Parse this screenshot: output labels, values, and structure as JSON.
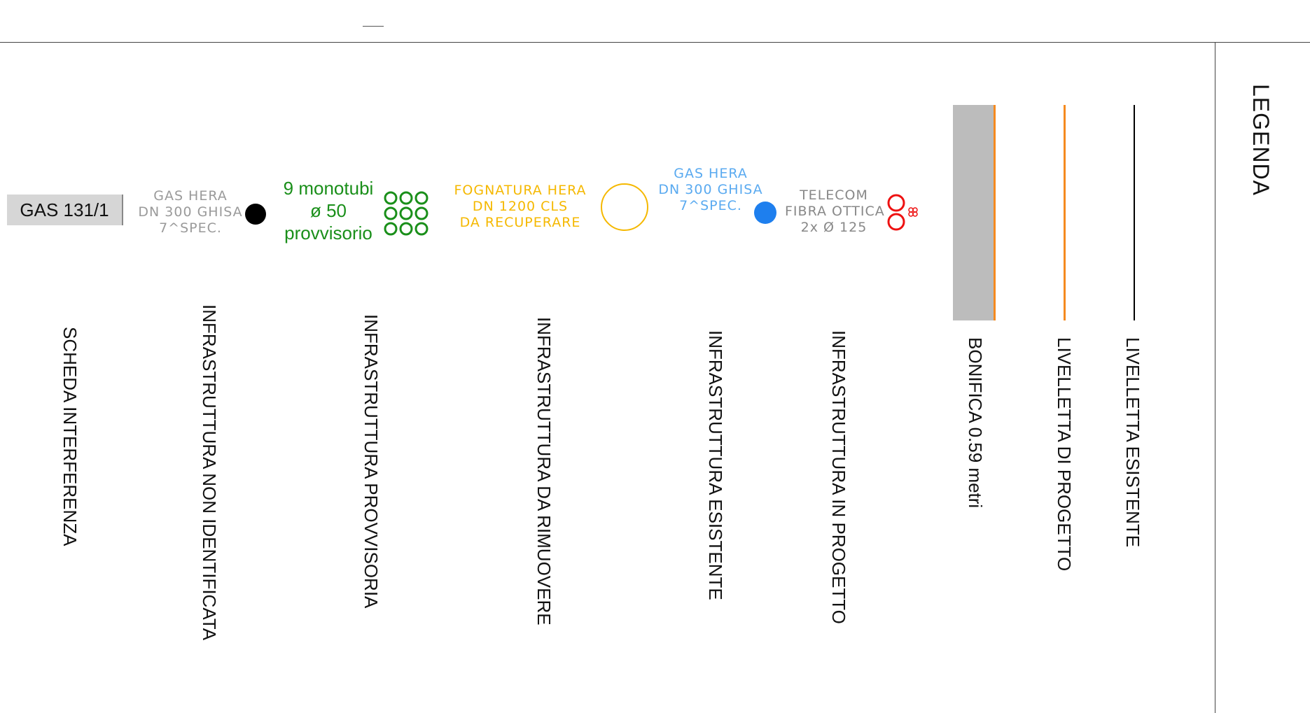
{
  "legend": {
    "title": "LEGENDA",
    "items": [
      {
        "label": "LIVELLETTA  ESISTENTE"
      },
      {
        "label": "LIVELLETTA  DI PROGETTO"
      },
      {
        "label": "BONIFICA 0.59 metri"
      },
      {
        "label": "INFRASTRUTTURA IN PROGETTO"
      },
      {
        "label": "INFRASTRUTTURA ESISTENTE"
      },
      {
        "label": "INFRASTRUTTURA DA RIMUOVERE"
      },
      {
        "label": "INFRASTRUTTURA PROVVISORIA"
      },
      {
        "label": "INFRASTRUTTURA NON IDENTIFICATA"
      },
      {
        "label": "SCHEDA INTERFERENZA"
      }
    ]
  },
  "symbols": {
    "scheda": {
      "label": "GAS 131/1"
    },
    "non_identificata": {
      "lines": [
        "GAS  HERA",
        "DN  300  GHISA",
        "7^SPEC."
      ],
      "color": "#9a9a9a"
    },
    "provvisoria": {
      "lines": [
        "9 monotubi",
        "ø 50",
        "provvisorio"
      ],
      "color": "#1a8f1a"
    },
    "da_rimuovere": {
      "lines": [
        "FOGNATURA  HERA",
        "DN  1200  CLS",
        "DA  RECUPERARE"
      ],
      "color": "#f5b800"
    },
    "esistente": {
      "lines": [
        "GAS  HERA",
        "DN  300  GHISA",
        "7^SPEC."
      ],
      "color": "#5aaaf0"
    },
    "in_progetto": {
      "lines": [
        "TELECOM",
        "FIBRA  OTTICA",
        "2x  Ø  125"
      ],
      "color": "#888888"
    }
  },
  "colors": {
    "progetto_line": "#f58a1f",
    "bonifica_fill": "#bcbcbc",
    "esistente_dot": "#1e7fee",
    "non_identificata_dot": "#000000",
    "telecom_red": "#ee1111",
    "provvisoria_green": "#1a8f1a",
    "rimuovere_yellow": "#f5b800"
  }
}
